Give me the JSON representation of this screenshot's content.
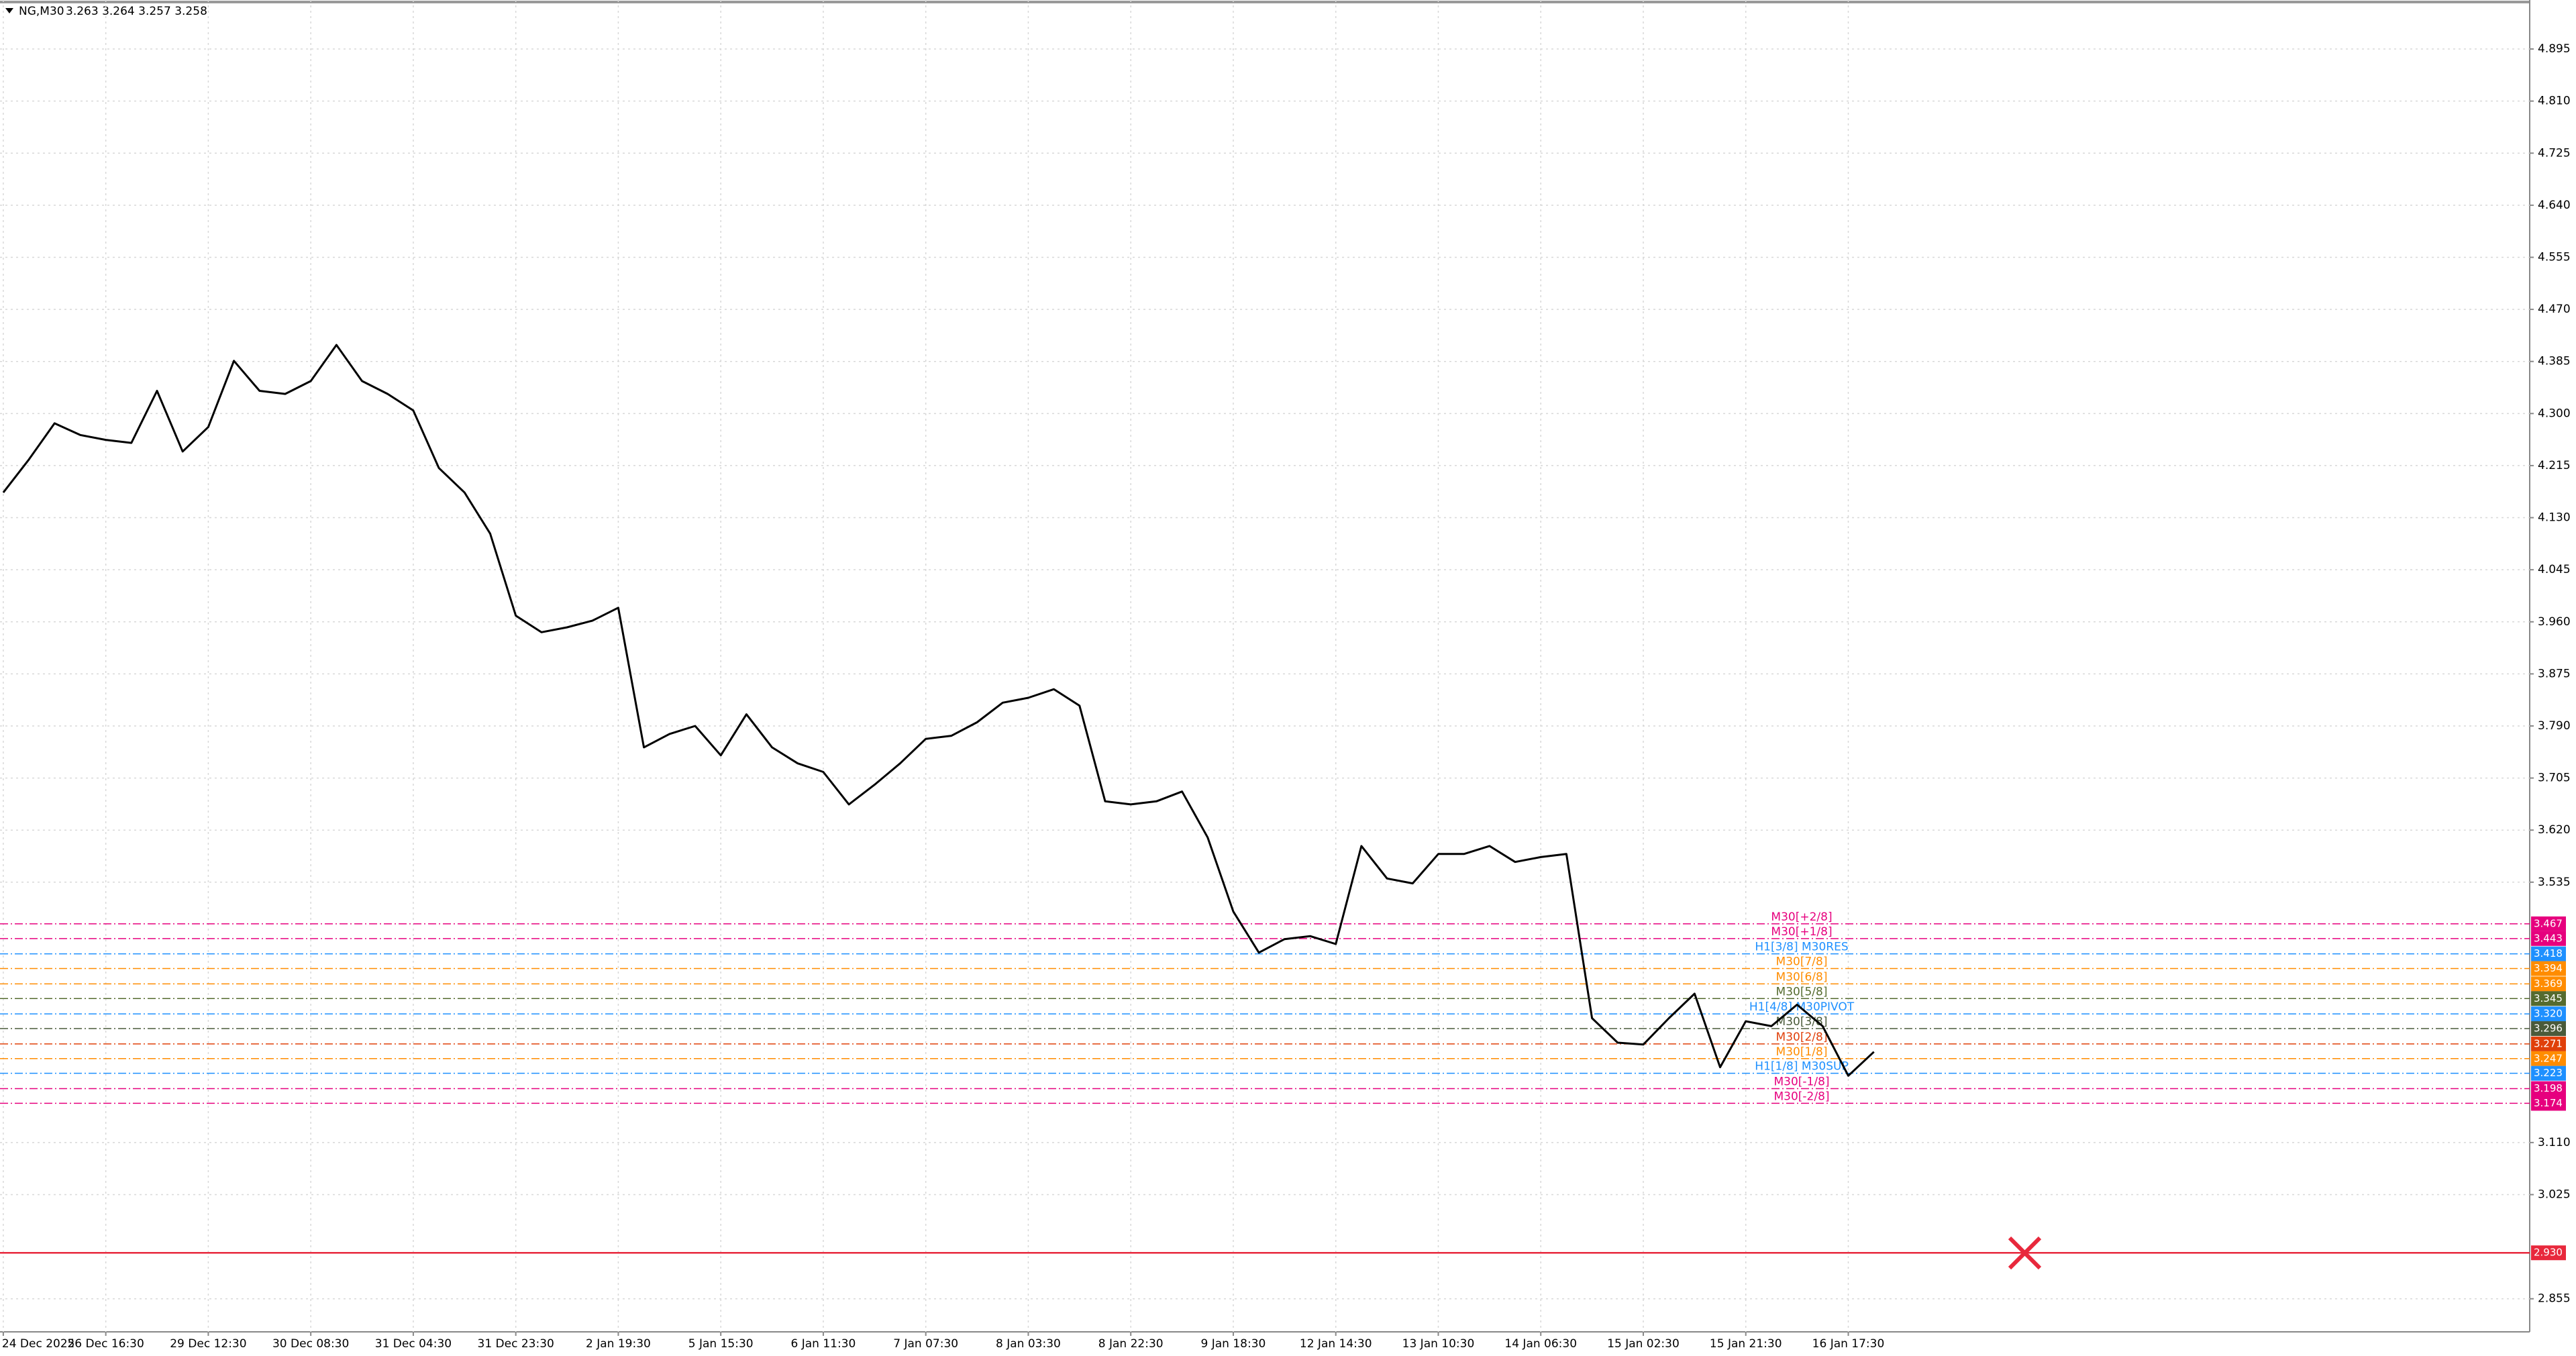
{
  "chart_data": {
    "type": "line",
    "title": "NG,M30",
    "quote": "3.263 3.264 3.257 3.258",
    "color": "#000000",
    "grid": true,
    "ylim": [
      2.801,
      4.975
    ],
    "yticks": [
      4.895,
      {
        "value": 4.81,
        "label": "4.810"
      },
      4.725,
      {
        "value": 4.64,
        "label": "4.640"
      },
      4.555,
      {
        "value": 4.47,
        "label": "4.470"
      },
      4.385,
      {
        "value": 4.3,
        "label": "4.300"
      },
      4.215,
      {
        "value": 4.13,
        "label": "4.130"
      },
      4.045,
      {
        "value": 3.96,
        "label": "3.960"
      },
      3.875,
      {
        "value": 3.79,
        "label": "3.790"
      },
      3.705,
      {
        "value": 3.62,
        "label": "3.620"
      },
      3.535,
      {
        "value": 3.11,
        "label": "3.110"
      },
      3.025,
      2.855
    ],
    "categories": [
      "24 Dec 2025",
      null,
      null,
      null,
      "26 Dec 16:30",
      null,
      null,
      null,
      "29 Dec 12:30",
      null,
      null,
      null,
      "30 Dec 08:30",
      null,
      null,
      null,
      "31 Dec 04:30",
      null,
      null,
      null,
      "31 Dec 23:30",
      null,
      null,
      null,
      "2 Jan 19:30",
      null,
      null,
      null,
      "5 Jan 15:30",
      null,
      null,
      null,
      "6 Jan 11:30",
      null,
      null,
      null,
      "7 Jan 07:30",
      null,
      null,
      null,
      "8 Jan 03:30",
      null,
      null,
      null,
      "8 Jan 22:30",
      null,
      null,
      null,
      "9 Jan 18:30",
      null,
      null,
      null,
      "12 Jan 14:30",
      null,
      null,
      null,
      "13 Jan 10:30",
      null,
      null,
      null,
      "14 Jan 06:30",
      null,
      null,
      null,
      "15 Jan 02:30",
      null,
      null,
      null,
      "15 Jan 21:30",
      null,
      null,
      null,
      "16 Jan 17:30",
      null
    ],
    "values": [
      4.171,
      4.225,
      4.284,
      4.265,
      4.257,
      4.252,
      4.337,
      4.238,
      4.278,
      4.386,
      4.337,
      4.332,
      4.353,
      4.412,
      4.353,
      4.332,
      4.305,
      4.211,
      4.171,
      4.104,
      3.97,
      3.943,
      3.951,
      3.962,
      3.983,
      3.755,
      3.777,
      3.79,
      3.742,
      3.809,
      3.755,
      3.729,
      3.715,
      3.662,
      3.694,
      3.729,
      3.769,
      3.774,
      3.796,
      3.828,
      3.836,
      3.85,
      3.823,
      3.667,
      3.662,
      3.667,
      3.683,
      3.608,
      3.487,
      3.42,
      3.442,
      3.447,
      3.434,
      3.594,
      3.541,
      3.533,
      3.581,
      3.581,
      3.594,
      3.568,
      3.576,
      3.581,
      3.313,
      3.273,
      3.27,
      3.313,
      3.353,
      3.233,
      3.308,
      3.3,
      3.335,
      3.3,
      3.219,
      3.258
    ],
    "levels": [
      {
        "label": "M30[+2/8]",
        "value": 3.467,
        "color": "#e6007e"
      },
      {
        "label": "M30[+1/8]",
        "value": 3.443,
        "color": "#e6007e"
      },
      {
        "label": "H1[3/8] M30RES",
        "value": 3.418,
        "color": "#1e90ff"
      },
      {
        "label": "M30[7/8]",
        "value": 3.394,
        "color": "#ff8c00"
      },
      {
        "label": "M30[6/8]",
        "value": 3.369,
        "color": "#ff8c00"
      },
      {
        "label": "M30[5/8]",
        "value": 3.345,
        "color": "#556b2f"
      },
      {
        "label": "H1[4/8] M30PIVOT",
        "value": 3.32,
        "value_label": "3.320",
        "color": "#1e90ff"
      },
      {
        "label": "M30[3/8]",
        "value": 3.296,
        "color": "#4a5a3a"
      },
      {
        "label": "M30[2/8]",
        "value": 3.271,
        "color": "#e0400a"
      },
      {
        "label": "M30[1/8]",
        "value": 3.247,
        "color": "#ff8c00"
      },
      {
        "label": "H1[1/8] M30SUP",
        "value": 3.223,
        "color": "#1e90ff"
      },
      {
        "label": "M30[-1/8]",
        "value": 3.198,
        "color": "#e6007e"
      },
      {
        "label": "M30[-2/8]",
        "value": 3.174,
        "color": "#e6007e"
      }
    ],
    "hline": {
      "value": 2.93,
      "value_label": "2.930",
      "color": "#e8283c"
    }
  }
}
